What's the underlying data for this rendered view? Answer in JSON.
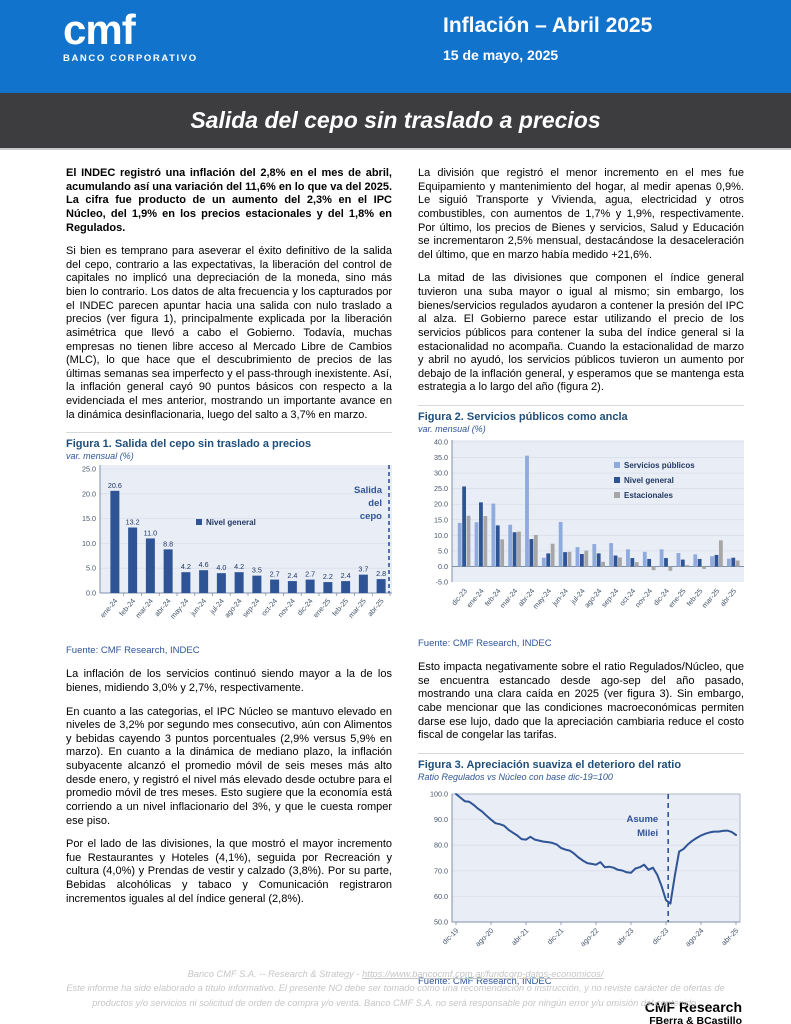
{
  "header": {
    "logo_brand": "cmf",
    "logo_subtitle": "BANCO CORPORATIVO",
    "title": "Inflación – Abril 2025",
    "date": "15 de mayo, 2025"
  },
  "banner": {
    "title": "Salida del cepo sin traslado a precios"
  },
  "left_column": {
    "lead": "El INDEC registró una inflación del 2,8% en el mes de abril, acumulando así una variación del 11,6% en lo que va del 2025. La cifra fue producto de un aumento del 2,3% en el IPC Núcleo, del 1,9% en los precios estacionales y del 1,8% en Regulados.",
    "p2": "Si bien es temprano para aseverar el éxito definitivo de la salida del cepo, contrario a las expectativas, la liberación del control de capitales no implicó una depreciación de la moneda, sino más bien lo contrario. Los datos de alta frecuencia y los capturados por el INDEC parecen apuntar hacia una salida con nulo traslado a precios (ver figura 1), principalmente explicada por la liberación asimétrica que llevó a cabo el Gobierno. Todavía, muchas empresas no tienen libre acceso al Mercado Libre de Cambios (MLC), lo que hace que el descubrimiento de precios de las últimas semanas sea imperfecto y el pass-through inexistente. Así, la inflación general cayó 90 puntos básicos con respecto a la evidenciada el mes anterior, mostrando un importante avance en la dinámica desinflacionaria, luego del salto a 3,7% en marzo.",
    "p3": "La inflación de los servicios continuó siendo mayor a la de los bienes, midiendo 3,0% y 2,7%, respectivamente.",
    "p4": "En cuanto a las categorias, el IPC Núcleo se mantuvo elevado en niveles de 3,2% por segundo mes consecutivo, aún con Alimentos y bebidas cayendo 3 puntos porcentuales (2,9% versus 5,9% en marzo). En cuanto a la dinámica de mediano plazo, la inflación subyacente alcanzó el promedio móvil de seis meses más alto desde enero, y registró el nivel más elevado desde octubre para el promedio móvil de tres meses. Esto sugiere que la economía está corriendo a un nivel inflacionario del 3%, y que le cuesta romper ese piso.",
    "p5": "Por el lado de las divisiones, la que mostró el mayor incremento fue Restaurantes y Hoteles (4,1%), seguida por Recreación y cultura (4,0%) y Prendas de vestir y calzado (3,8%). Por su parte, Bebidas alcohólicas y tabaco y Comunicación registraron incrementos iguales al del índice general (2,8%)."
  },
  "right_column": {
    "p1": "La división que registró el menor incremento en el mes fue Equipamiento y mantenimiento del hogar, al medir apenas 0,9%. Le siguió Transporte y Vivienda, agua, electricidad y otros combustibles, con aumentos de 1,7% y 1,9%, respectivamente. Por último, los precios de Bienes y servicios, Salud y Educación se incrementaron  2,5% mensual, destacándose la desaceleración del último, que en marzo había medido +21,6%.",
    "p2": "La mitad de las divisiones que componen el índice general tuvieron una suba mayor o igual al mismo; sin embargo, los bienes/servicios regulados ayudaron a contener la presión del IPC al alza. El Gobierno parece estar utilizando el precio de los servicios públicos para contener la suba del índice general si la estacionalidad no acompaña. Cuando la estacionalidad de marzo y abril no ayudó, los servicios públicos tuvieron un aumento por debajo de la inflación general, y esperamos que se mantenga esta estrategia a lo largo del año (figura 2).",
    "p3": "Esto impacta negativamente sobre el ratio Regulados/Núcleo, que se encuentra estancado desde ago-sep del año pasado, mostrando una clara caída en 2025 (ver figura 3). Sin embargo, cabe mencionar que las condiciones macroeconómicas permiten darse ese lujo, dado que la apreciación cambiaria reduce el costo fiscal de congelar las tarifas."
  },
  "signature": {
    "line1": "CMF Research",
    "line2": "FBerra & BCastillo"
  },
  "footer": {
    "line1_prefix": "Banco CMF S.A. -- Research & Strategy - ",
    "line1_link": "https://www.bancocmf.com.ar/fundcorp-datos-economicos/",
    "disclaimer": "Este informe ha sido elaborado a título informativo. El presente NO debe ser tomado como una recomendación o instrucción, y no reviste carácter de ofertas de productos y/o servicios ni solicitud de orden de compra y/o venta. Banco CMF S.A. no será responsable por ningún error y/u omisión del contenido."
  },
  "colors": {
    "header_blue": "#1273cd",
    "banner_dark": "#3d3d40",
    "navy_series": "#2f5496",
    "light_blue_series": "#8faadc",
    "gray_series": "#a6a6a6",
    "plot_bg": "#e9edf5",
    "axis_text": "#44546a",
    "fig_title_blue": "#1f4e79"
  },
  "chart_data": [
    {
      "type": "bar",
      "title": "Figura 1. Salida del cepo sin traslado a precios",
      "subtitle": "var. mensual (%)",
      "source": "Fuente: CMF Research, INDEC",
      "legend": [
        "Nivel general"
      ],
      "annotation_lines": [
        "Salida",
        "del",
        "cepo"
      ],
      "categories": [
        "ene-24",
        "feb-24",
        "mar-24",
        "abr-24",
        "may-24",
        "jun-24",
        "jul-24",
        "ago-24",
        "sep-24",
        "oct-24",
        "nov-24",
        "dic-24",
        "ene-25",
        "feb-25",
        "mar-25",
        "abr-25"
      ],
      "values": [
        20.6,
        13.2,
        11.0,
        8.8,
        4.2,
        4.6,
        4.0,
        4.2,
        3.5,
        2.7,
        2.4,
        2.7,
        2.2,
        2.4,
        3.7,
        2.8
      ],
      "ylim": [
        0,
        25
      ],
      "ytick_step": 5,
      "grid": true,
      "vline": "right-edge-dashed"
    },
    {
      "type": "grouped-bar",
      "title": "Figura 2. Servicios públicos como ancla",
      "subtitle": "var. mensual (%)",
      "source": "Fuente: CMF Research, INDEC",
      "legend_position": "top-right",
      "categories": [
        "dic-23",
        "ene-24",
        "feb-24",
        "mar-24",
        "abr-24",
        "may-24",
        "jun-24",
        "jul-24",
        "ago-24",
        "sep-24",
        "oct-24",
        "nov-24",
        "dic-24",
        "ene-25",
        "feb-25",
        "mar-25",
        "abr-25"
      ],
      "series": [
        {
          "name": "Servicios públicos",
          "color": "#8faadc",
          "values": [
            14.0,
            14.2,
            20.2,
            13.4,
            35.6,
            2.8,
            14.3,
            6.2,
            7.2,
            7.5,
            5.5,
            4.7,
            5.5,
            4.3,
            3.9,
            3.3,
            2.5
          ]
        },
        {
          "name": "Nivel general",
          "color": "#2f5496",
          "values": [
            25.7,
            20.6,
            13.2,
            11.0,
            8.8,
            4.2,
            4.6,
            4.0,
            4.2,
            3.5,
            2.7,
            2.4,
            2.7,
            2.2,
            2.4,
            3.7,
            2.8
          ]
        },
        {
          "name": "Estacionales",
          "color": "#a6a6a6",
          "values": [
            16.3,
            16.2,
            8.7,
            11.2,
            10.1,
            7.3,
            4.7,
            5.1,
            1.5,
            2.9,
            1.4,
            -1.2,
            -1.4,
            0.4,
            -0.8,
            8.4,
            1.9
          ]
        }
      ],
      "ylim": [
        -5,
        40
      ],
      "ytick_step": 5,
      "grid": true
    },
    {
      "type": "line",
      "title": "Figura 3. Apreciación suaviza el deterioro del ratio",
      "subtitle": "Ratio Regulados vs Núcleo con base dic-19=100",
      "source": "Fuente: CMF Research, INDEC",
      "annotation_lines": [
        "Asume",
        "Milei"
      ],
      "x_tick_labels": [
        "dic-19",
        "ago-20",
        "abr-21",
        "dic-21",
        "ago-22",
        "abr-23",
        "dic-23",
        "ago-24",
        "abr-25"
      ],
      "x_tick_indices": [
        0,
        8,
        16,
        24,
        32,
        40,
        48,
        56,
        64
      ],
      "values": [
        100.0,
        98.6,
        97.2,
        97.0,
        95.8,
        94.3,
        93.1,
        91.5,
        90.0,
        88.6,
        88.2,
        87.6,
        86.0,
        84.9,
        83.8,
        82.4,
        82.2,
        83.3,
        82.2,
        81.8,
        81.4,
        81.2,
        80.9,
        80.3,
        78.9,
        78.3,
        77.9,
        76.7,
        75.2,
        74.0,
        73.0,
        72.7,
        72.4,
        73.4,
        71.4,
        71.6,
        71.2,
        70.4,
        70.1,
        69.4,
        69.2,
        70.9,
        71.4,
        72.4,
        70.4,
        71.2,
        68.4,
        64.0,
        58.5,
        57.2,
        68.0,
        77.5,
        78.5,
        80.3,
        81.7,
        82.8,
        83.8,
        84.5,
        85.0,
        85.3,
        85.3,
        85.6,
        85.7,
        85.2,
        84.0
      ],
      "vline_index": 48.5,
      "ylim": [
        50,
        100
      ],
      "ytick_step": 10,
      "grid": true,
      "line_color": "#2f5496"
    }
  ]
}
